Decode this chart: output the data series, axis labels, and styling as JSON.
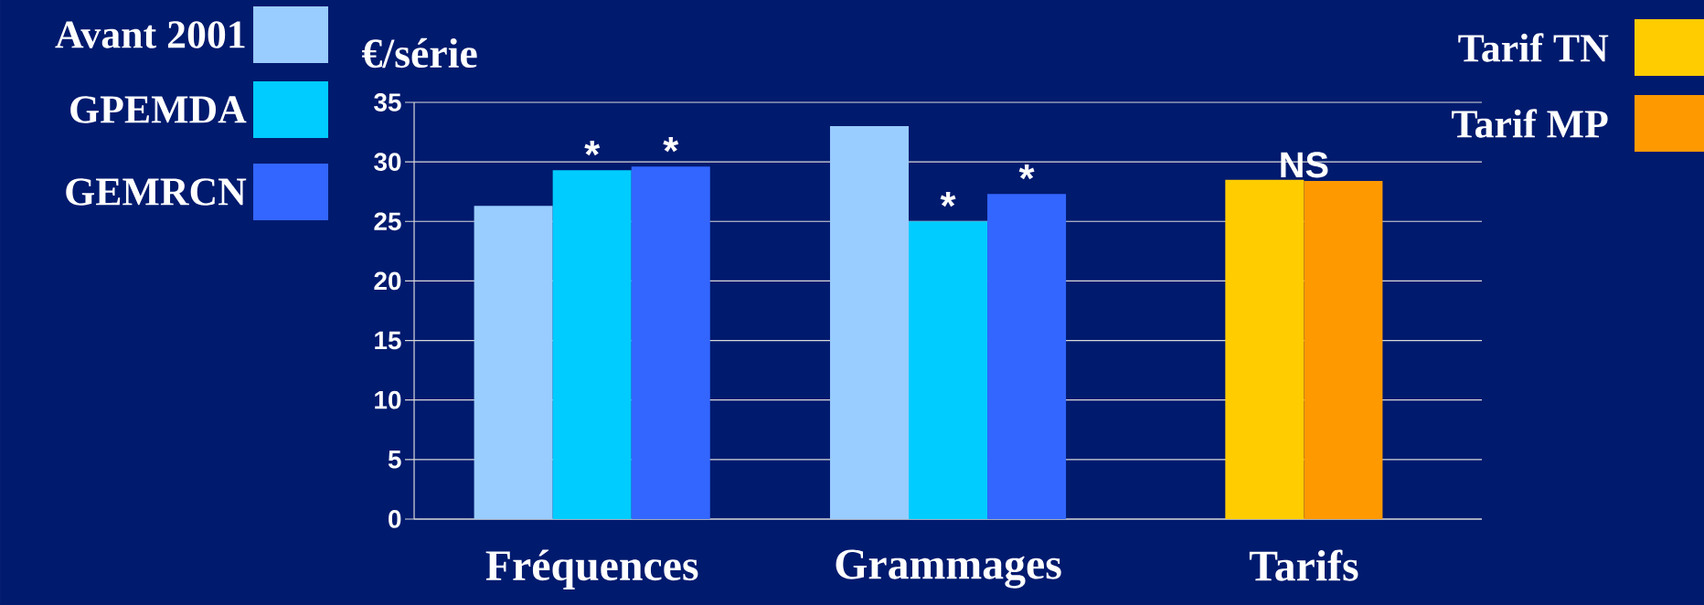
{
  "chart_data": {
    "type": "bar",
    "ylabel": "€/série",
    "categories": [
      "Fréquences",
      "Grammages",
      "Tarifs"
    ],
    "series": [
      {
        "name": "Avant 2001",
        "color": "#99ccff",
        "values": [
          26.3,
          33.0,
          null
        ]
      },
      {
        "name": "GPEMDA",
        "color": "#00ccff",
        "values": [
          29.3,
          25.0,
          null
        ],
        "value_labels": [
          "*",
          "*",
          null
        ]
      },
      {
        "name": "GEMRCN",
        "color": "#3366ff",
        "values": [
          29.6,
          27.3,
          null
        ],
        "value_labels": [
          "*",
          "*",
          null
        ]
      },
      {
        "name": "Tarif TN",
        "color": "#ffcc00",
        "values": [
          null,
          null,
          28.5
        ]
      },
      {
        "name": "Tarif MP",
        "color": "#ff9900",
        "values": [
          null,
          null,
          28.4
        ]
      }
    ],
    "annotations": [
      "NS"
    ],
    "ylim": [
      0,
      35
    ],
    "yticks": [
      0,
      5,
      10,
      15,
      20,
      25,
      30,
      35
    ],
    "grid": "y",
    "legend": "top"
  }
}
